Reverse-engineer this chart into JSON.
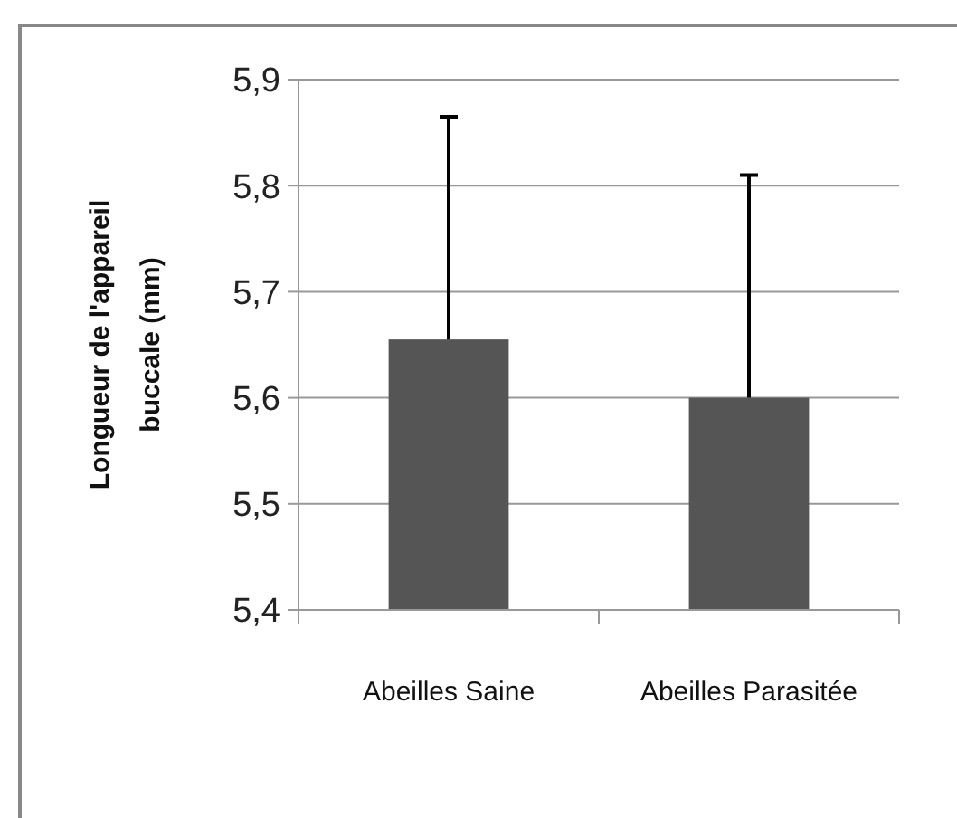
{
  "chart_data": {
    "type": "bar",
    "ylabel": "Longueur de l'appareil\nbuccale  (mm)",
    "categories": [
      "Abeilles Saine",
      "Abeilles Parasitée"
    ],
    "values": [
      5.655,
      5.6
    ],
    "color": "#555555",
    "errors": [
      [
        5.655,
        5.865
      ],
      [
        5.6,
        5.81
      ]
    ],
    "ylim": [
      5.4,
      5.9
    ],
    "yticks": [
      {
        "value": 5.4,
        "label": "5,4"
      },
      {
        "value": 5.5,
        "label": "5,5"
      },
      {
        "value": 5.6,
        "label": "5,6"
      },
      {
        "value": 5.7,
        "label": "5,7"
      },
      {
        "value": 5.8,
        "label": "5,8"
      },
      {
        "value": 5.9,
        "label": "5,9"
      }
    ],
    "grid": "y"
  }
}
